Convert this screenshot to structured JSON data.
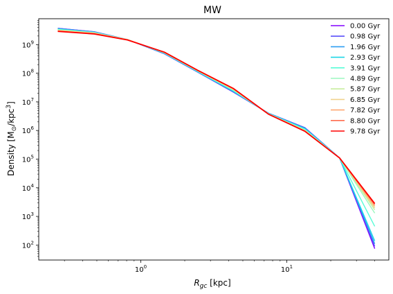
{
  "chart_data": {
    "type": "line",
    "title": "MW",
    "xlabel": "R_gc [kpc]",
    "ylabel": "Density [M_sun/kpc^3]",
    "xscale": "log",
    "yscale": "log",
    "xlim": [
      0.2,
      50
    ],
    "ylim": [
      30,
      8000000000
    ],
    "x_ticks": [
      1,
      10
    ],
    "x_tick_labels": [
      "10^0",
      "10^1"
    ],
    "y_ticks": [
      100,
      1000,
      10000,
      100000,
      1000000,
      10000000,
      100000000,
      1000000000
    ],
    "y_tick_labels": [
      "10^2",
      "10^3",
      "10^4",
      "10^5",
      "10^6",
      "10^7",
      "10^8",
      "10^9"
    ],
    "grid": false,
    "legend_position": "upper right",
    "x": [
      0.27,
      0.48,
      0.81,
      1.45,
      2.45,
      4.3,
      7.5,
      13.3,
      23.0,
      40.0
    ],
    "series": [
      {
        "name": "0.00 Gyr",
        "color": "#8000ff",
        "values": [
          3700000000,
          2800000000,
          1500000000,
          480000000,
          110000000,
          22000000,
          4000000,
          1250000,
          110000,
          75
        ]
      },
      {
        "name": "0.98 Gyr",
        "color": "#5a50fa",
        "values": [
          3700000000,
          2800000000,
          1500000000,
          480000000,
          110000000,
          22000000,
          4000000,
          1250000,
          110000,
          90
        ]
      },
      {
        "name": "1.96 Gyr",
        "color": "#2c9ef2",
        "values": [
          3600000000,
          2750000000,
          1500000000,
          490000000,
          112000000,
          23000000,
          4000000,
          1200000,
          110000,
          110
        ]
      },
      {
        "name": "2.93 Gyr",
        "color": "#1cd6e6",
        "values": [
          3500000000,
          2700000000,
          1500000000,
          500000000,
          115000000,
          24000000,
          3900000,
          1150000,
          110000,
          140
        ]
      },
      {
        "name": "3.91 Gyr",
        "color": "#58fcd6",
        "values": [
          3400000000,
          2650000000,
          1500000000,
          510000000,
          118000000,
          25000000,
          3900000,
          1100000,
          110000,
          450
        ]
      },
      {
        "name": "4.89 Gyr",
        "color": "#9cf7bf",
        "values": [
          3300000000,
          2600000000,
          1500000000,
          520000000,
          120000000,
          26000000,
          3800000,
          1050000,
          110000,
          1300
        ]
      },
      {
        "name": "5.87 Gyr",
        "color": "#c8ed9e",
        "values": [
          3200000000,
          2550000000,
          1500000000,
          525000000,
          122000000,
          27000000,
          3800000,
          1000000,
          110000,
          1700
        ]
      },
      {
        "name": "6.85 Gyr",
        "color": "#f0d28c",
        "values": [
          3100000000,
          2500000000,
          1500000000,
          530000000,
          124000000,
          28000000,
          3800000,
          980000,
          110000,
          2000
        ]
      },
      {
        "name": "7.82 Gyr",
        "color": "#ffa872",
        "values": [
          3000000000,
          2450000000,
          1480000000,
          535000000,
          125000000,
          28500000,
          3700000,
          960000,
          110000,
          2300
        ]
      },
      {
        "name": "8.80 Gyr",
        "color": "#ff6c4e",
        "values": [
          2950000000,
          2400000000,
          1470000000,
          540000000,
          126000000,
          29000000,
          3700000,
          950000,
          110000,
          2600
        ]
      },
      {
        "name": "9.78 Gyr",
        "color": "#ff0000",
        "values": [
          2900000000,
          2350000000,
          1450000000,
          545000000,
          127000000,
          29500000,
          3700000,
          940000,
          110000,
          2800
        ]
      }
    ]
  }
}
